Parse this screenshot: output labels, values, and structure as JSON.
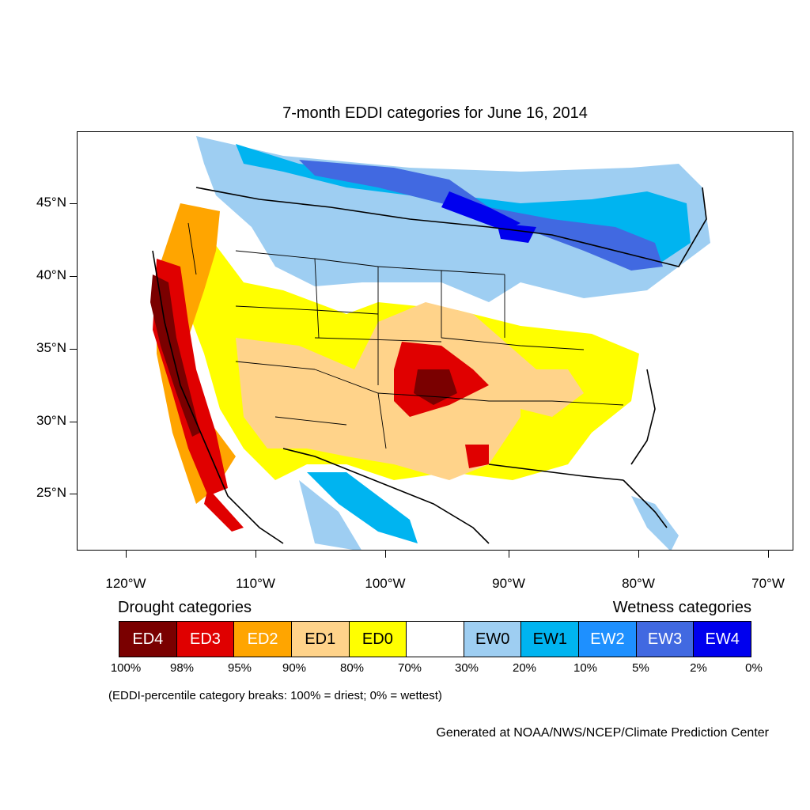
{
  "title": "7-month EDDI categories for June 16, 2014",
  "map": {
    "lat_labels": [
      {
        "label": "45°N",
        "lat": 45
      },
      {
        "label": "40°N",
        "lat": 40
      },
      {
        "label": "35°N",
        "lat": 35
      },
      {
        "label": "30°N",
        "lat": 30
      },
      {
        "label": "25°N",
        "lat": 25
      }
    ],
    "lon_labels": [
      {
        "label": "120°W",
        "lon": -120
      },
      {
        "label": "110°W",
        "lon": -110
      },
      {
        "label": "100°W",
        "lon": -100
      },
      {
        "label": "90°W",
        "lon": -90
      },
      {
        "label": "80°W",
        "lon": -80
      },
      {
        "label": "70°W",
        "lon": -70
      }
    ]
  },
  "legend": {
    "left_title": "Drought categories",
    "right_title": "Wetness categories",
    "categories": [
      {
        "label": "ED4",
        "color": "#7a0000",
        "text_color": "#ffffff"
      },
      {
        "label": "ED3",
        "color": "#e00000",
        "text_color": "#ffffff"
      },
      {
        "label": "ED2",
        "color": "#ffa500",
        "text_color": "#ffffff"
      },
      {
        "label": "ED1",
        "color": "#ffd38a",
        "text_color": "#000000"
      },
      {
        "label": "ED0",
        "color": "#ffff00",
        "text_color": "#000000"
      },
      {
        "label": "",
        "color": "#ffffff",
        "text_color": "#000000"
      },
      {
        "label": "EW0",
        "color": "#9ecef2",
        "text_color": "#000000"
      },
      {
        "label": "EW1",
        "color": "#00b4f0",
        "text_color": "#000000"
      },
      {
        "label": "EW2",
        "color": "#1e90ff",
        "text_color": "#ffffff"
      },
      {
        "label": "EW3",
        "color": "#4169e1",
        "text_color": "#ffffff"
      },
      {
        "label": "EW4",
        "color": "#0000ee",
        "text_color": "#ffffff"
      }
    ],
    "breaks": [
      "100%",
      "98%",
      "95%",
      "90%",
      "80%",
      "70%",
      "30%",
      "20%",
      "10%",
      "5%",
      "2%",
      "0%"
    ]
  },
  "footnote": "(EDDI-percentile category breaks: 100% = driest; 0% = wettest)",
  "credit": "Generated at NOAA/NWS/NCEP/Climate Prediction Center"
}
